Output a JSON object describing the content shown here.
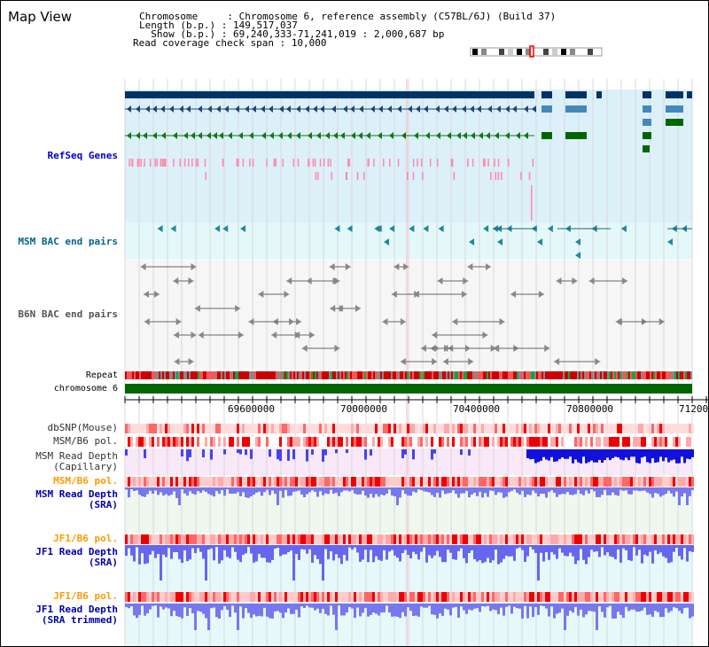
{
  "header": {
    "title": "Map View",
    "chromosome_label": "Chromosome     : ",
    "chromosome_value": "Chromosome 6, reference assembly (C57BL/6J) (Build 37)",
    "length_label": "Length (b.p.) : ",
    "length_value": "149,517,037",
    "show_label": "  Show (b.p.) : ",
    "show_value": "69,240,333-71,241,019 : 2,000,687 bp",
    "coverage_label": "Read coverage check span : ",
    "coverage_value": "10,000"
  },
  "tracks": {
    "refseq": "RefSeq Genes",
    "msm_bac": "MSM BAC end pairs",
    "b6n_bac": "B6N BAC end pairs",
    "repeat": "Repeat",
    "chromosome": "chromosome 6",
    "dbsnp": "dbSNP(Mouse)",
    "msm_b6_pol": "MSM/B6 pol.",
    "msm_depth_cap_1": "MSM Read Depth",
    "msm_depth_cap_2": "(Capillary)",
    "msm_b6_pol_sra": "MSM/B6 pol.",
    "msm_depth_sra_1": "MSM Read Depth",
    "msm_depth_sra_2": "(SRA)",
    "jf1_pol_1": "JF1/B6 pol.",
    "jf1_depth_1": "JF1 Read Depth",
    "jf1_depth_1b": "(SRA)",
    "jf1_pol_2": "JF1/B6 pol.",
    "jf1_depth_2": "JF1 Read Depth",
    "jf1_depth_2b": "(SRA trimmed)"
  },
  "axis": {
    "ticks": [
      "69600000",
      "70000000",
      "70400000",
      "70800000",
      "71200"
    ]
  },
  "colors": {
    "refseq_label": "#0000cc",
    "msm_bac_label": "#006688",
    "b6n_label": "#555555",
    "pol_label": "#ff9900",
    "depth_label": "#0000aa",
    "chromosome_bar": "#006600",
    "gene_dark": "#003366",
    "gene_mid": "#4488bb",
    "gene_green": "#006600"
  }
}
